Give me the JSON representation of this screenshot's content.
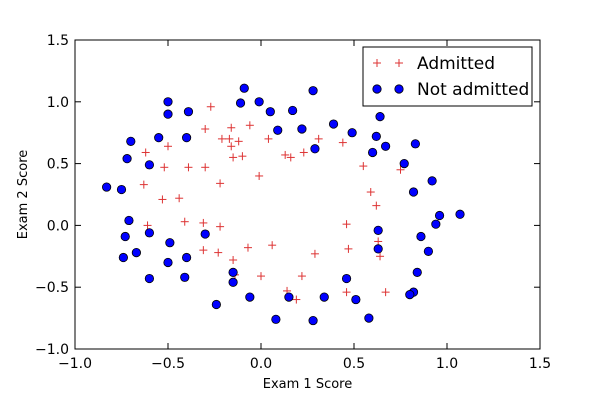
{
  "chart_data": {
    "type": "scatter",
    "title": "",
    "xlabel": "Exam 1 Score",
    "ylabel": "Exam 2 Score",
    "xlim": [
      -1.0,
      1.5
    ],
    "ylim": [
      -1.0,
      1.5
    ],
    "xticks": [
      -1.0,
      -0.5,
      0.0,
      0.5,
      1.0,
      1.5
    ],
    "yticks": [
      -1.0,
      -0.5,
      0.0,
      0.5,
      1.0,
      1.5
    ],
    "xtick_labels": [
      "−1.0",
      "−0.5",
      "0.0",
      "0.5",
      "1.0",
      "1.5"
    ],
    "ytick_labels": [
      "−1.0",
      "−0.5",
      "0.0",
      "0.5",
      "1.0",
      "1.5"
    ],
    "grid": false,
    "legend_position": "upper-right",
    "series": [
      {
        "name": "Admitted",
        "marker": "plus",
        "color": "#dd3333",
        "points": [
          [
            -0.27,
            0.96
          ],
          [
            -0.17,
            0.7
          ],
          [
            -0.12,
            0.68
          ],
          [
            -0.06,
            0.81
          ],
          [
            0.04,
            0.7
          ],
          [
            -0.3,
            0.78
          ],
          [
            -0.5,
            0.64
          ],
          [
            -0.52,
            0.47
          ],
          [
            -0.62,
            0.59
          ],
          [
            -0.63,
            0.33
          ],
          [
            -0.53,
            0.21
          ],
          [
            -0.44,
            0.22
          ],
          [
            -0.39,
            0.47
          ],
          [
            -0.3,
            0.47
          ],
          [
            -0.21,
            0.7
          ],
          [
            -0.16,
            0.79
          ],
          [
            -0.16,
            0.64
          ],
          [
            -0.15,
            0.55
          ],
          [
            -0.1,
            0.56
          ],
          [
            -0.22,
            0.34
          ],
          [
            0.13,
            0.57
          ],
          [
            0.16,
            0.55
          ],
          [
            0.23,
            0.59
          ],
          [
            0.31,
            0.7
          ],
          [
            0.44,
            0.67
          ],
          [
            0.55,
            0.48
          ],
          [
            0.59,
            0.27
          ],
          [
            0.62,
            0.16
          ],
          [
            0.75,
            0.45
          ],
          [
            -0.01,
            0.4
          ],
          [
            -0.61,
            0.0
          ],
          [
            -0.41,
            0.03
          ],
          [
            -0.31,
            0.02
          ],
          [
            -0.22,
            -0.01
          ],
          [
            -0.31,
            -0.2
          ],
          [
            -0.23,
            -0.22
          ],
          [
            -0.15,
            -0.28
          ],
          [
            -0.14,
            -0.4
          ],
          [
            -0.07,
            -0.18
          ],
          [
            0.0,
            -0.41
          ],
          [
            0.06,
            -0.16
          ],
          [
            0.14,
            -0.53
          ],
          [
            0.19,
            -0.6
          ],
          [
            0.22,
            -0.41
          ],
          [
            0.29,
            -0.23
          ],
          [
            0.46,
            0.01
          ],
          [
            0.47,
            -0.19
          ],
          [
            0.46,
            -0.54
          ],
          [
            0.63,
            -0.13
          ],
          [
            0.64,
            -0.25
          ],
          [
            0.67,
            -0.54
          ]
        ]
      },
      {
        "name": "Not admitted",
        "marker": "circle",
        "color": "#0000ff",
        "points": [
          [
            -0.09,
            1.11
          ],
          [
            -0.11,
            0.99
          ],
          [
            -0.01,
            1.0
          ],
          [
            0.05,
            0.92
          ],
          [
            -0.5,
            1.0
          ],
          [
            -0.5,
            0.9
          ],
          [
            -0.39,
            0.92
          ],
          [
            -0.55,
            0.71
          ],
          [
            -0.4,
            0.71
          ],
          [
            -0.7,
            0.68
          ],
          [
            -0.6,
            0.49
          ],
          [
            -0.72,
            0.54
          ],
          [
            -0.75,
            0.29
          ],
          [
            -0.83,
            0.31
          ],
          [
            0.09,
            0.77
          ],
          [
            0.17,
            0.93
          ],
          [
            0.22,
            0.78
          ],
          [
            0.28,
            1.09
          ],
          [
            0.29,
            0.62
          ],
          [
            0.39,
            0.82
          ],
          [
            0.49,
            0.75
          ],
          [
            0.6,
            0.59
          ],
          [
            0.62,
            0.72
          ],
          [
            0.64,
            0.88
          ],
          [
            0.67,
            0.64
          ],
          [
            0.77,
            0.5
          ],
          [
            0.83,
            0.66
          ],
          [
            0.82,
            0.27
          ],
          [
            0.92,
            0.36
          ],
          [
            0.96,
            0.08
          ],
          [
            0.94,
            0.01
          ],
          [
            1.07,
            0.09
          ],
          [
            0.86,
            -0.09
          ],
          [
            0.9,
            -0.21
          ],
          [
            0.84,
            -0.38
          ],
          [
            0.82,
            -0.54
          ],
          [
            0.8,
            -0.56
          ],
          [
            0.63,
            -0.04
          ],
          [
            0.63,
            -0.19
          ],
          [
            0.46,
            -0.43
          ],
          [
            0.51,
            -0.6
          ],
          [
            0.58,
            -0.75
          ],
          [
            0.34,
            -0.58
          ],
          [
            0.28,
            -0.77
          ],
          [
            0.15,
            -0.58
          ],
          [
            0.08,
            -0.76
          ],
          [
            -0.06,
            -0.58
          ],
          [
            -0.24,
            -0.64
          ],
          [
            -0.15,
            -0.38
          ],
          [
            -0.15,
            -0.46
          ],
          [
            -0.3,
            -0.07
          ],
          [
            -0.4,
            -0.26
          ],
          [
            -0.41,
            -0.42
          ],
          [
            -0.49,
            -0.14
          ],
          [
            -0.5,
            -0.3
          ],
          [
            -0.6,
            -0.06
          ],
          [
            -0.6,
            -0.43
          ],
          [
            -0.67,
            -0.22
          ],
          [
            -0.71,
            0.04
          ],
          [
            -0.73,
            -0.09
          ],
          [
            -0.74,
            -0.26
          ]
        ]
      }
    ]
  }
}
